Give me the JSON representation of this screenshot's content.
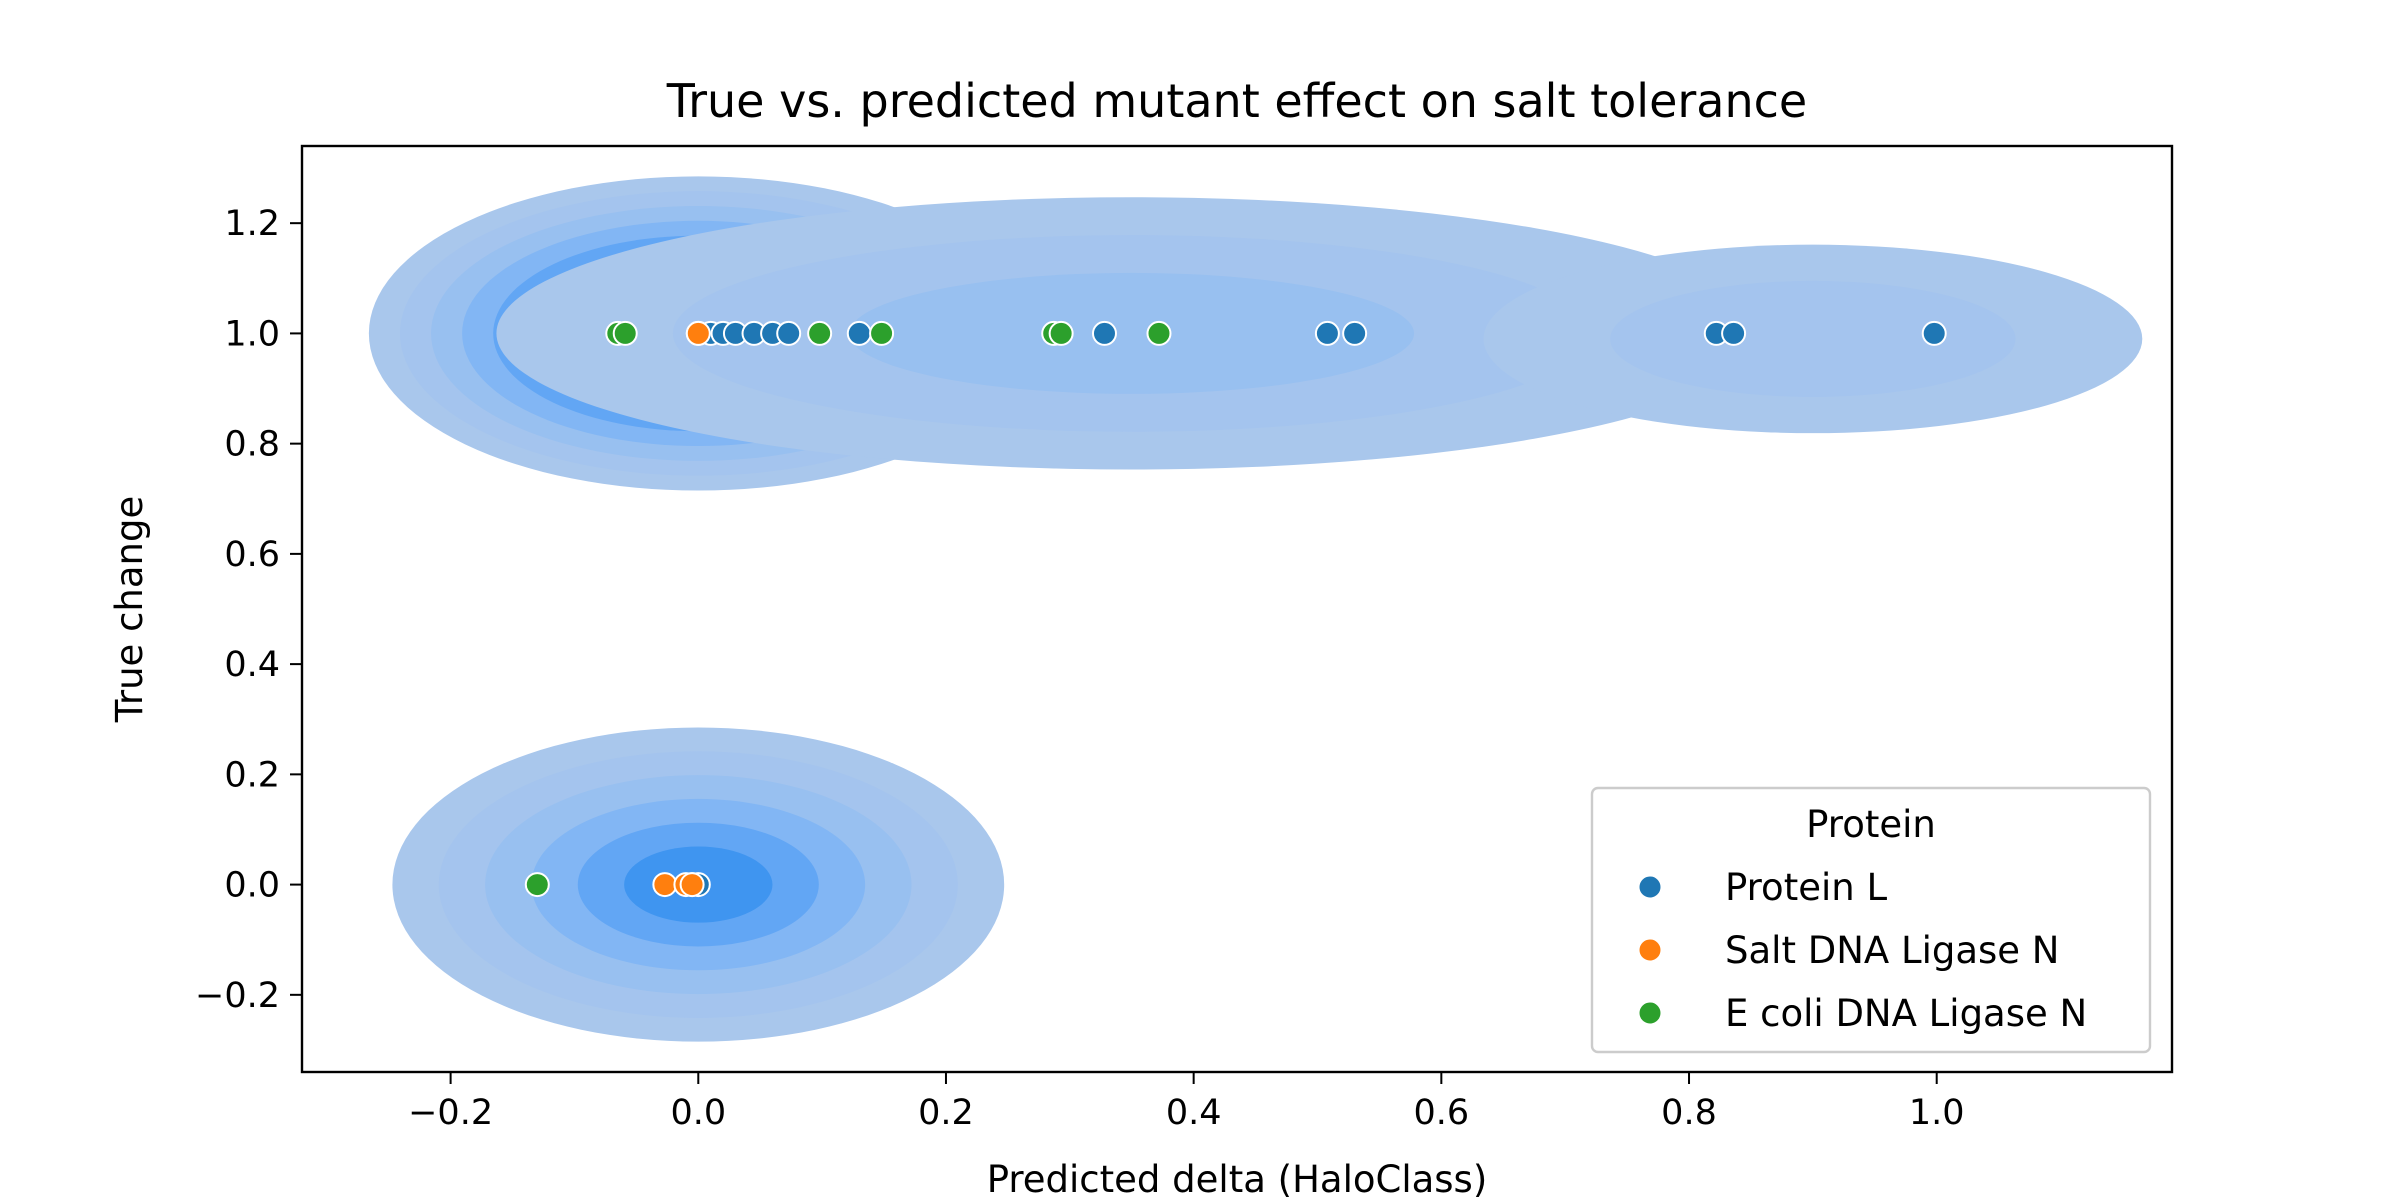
{
  "chart_data": {
    "type": "scatter",
    "title": "True vs. predicted mutant effect on salt tolerance",
    "xlabel": "Predicted delta (HaloClass)",
    "ylabel": "True change",
    "xlim": [
      -0.32,
      1.19
    ],
    "ylim": [
      -0.34,
      1.34
    ],
    "x_ticks": [
      -0.2,
      0.0,
      0.2,
      0.4,
      0.6,
      0.8,
      1.0
    ],
    "x_tick_labels": [
      "−0.2",
      "0.0",
      "0.2",
      "0.4",
      "0.6",
      "0.8",
      "1.0"
    ],
    "y_ticks": [
      -0.2,
      0.0,
      0.2,
      0.4,
      0.6,
      0.8,
      1.0,
      1.2
    ],
    "y_tick_labels": [
      "−0.2",
      "0.0",
      "0.2",
      "0.4",
      "0.6",
      "0.8",
      "1.0",
      "1.2"
    ],
    "grid": false,
    "legend": {
      "title": "Protein",
      "placement": "lower-right"
    },
    "density_overlay": {
      "kind": "kde",
      "color": "#1f77b4",
      "levels": 10,
      "clusters": [
        {
          "center": [
            0.0,
            1.0
          ],
          "spread": [
            0.14,
            0.15
          ],
          "levels": 10
        },
        {
          "center": [
            0.35,
            1.0
          ],
          "spread": [
            0.27,
            0.13
          ],
          "levels": 3
        },
        {
          "center": [
            0.9,
            0.99
          ],
          "spread": [
            0.14,
            0.09
          ],
          "levels": 2
        },
        {
          "center": [
            0.0,
            0.0
          ],
          "spread": [
            0.13,
            0.15
          ],
          "levels": 6
        }
      ]
    },
    "series": [
      {
        "name": "Protein L",
        "color": "#1f77b4",
        "points": [
          [
            0.0,
            1.0
          ],
          [
            0.01,
            1.0
          ],
          [
            0.02,
            1.0
          ],
          [
            0.03,
            1.0
          ],
          [
            0.045,
            1.0
          ],
          [
            0.06,
            1.0
          ],
          [
            0.073,
            1.0
          ],
          [
            0.13,
            1.0
          ],
          [
            0.328,
            1.0
          ],
          [
            0.508,
            1.0
          ],
          [
            0.53,
            1.0
          ],
          [
            0.822,
            1.0
          ],
          [
            0.836,
            1.0
          ],
          [
            0.998,
            1.0
          ],
          [
            -0.005,
            0.0
          ],
          [
            0.0,
            0.0
          ]
        ]
      },
      {
        "name": "Salt DNA Ligase N",
        "color": "#ff7f0e",
        "points": [
          [
            0.0,
            1.0
          ],
          [
            -0.027,
            0.0
          ],
          [
            -0.01,
            0.0
          ],
          [
            -0.005,
            0.0
          ]
        ]
      },
      {
        "name": "E coli DNA Ligase N",
        "color": "#2ca02c",
        "points": [
          [
            -0.065,
            1.0
          ],
          [
            -0.059,
            1.0
          ],
          [
            0.098,
            1.0
          ],
          [
            0.148,
            1.0
          ],
          [
            0.287,
            1.0
          ],
          [
            0.293,
            1.0
          ],
          [
            0.372,
            1.0
          ],
          [
            -0.13,
            0.0
          ]
        ]
      }
    ]
  }
}
